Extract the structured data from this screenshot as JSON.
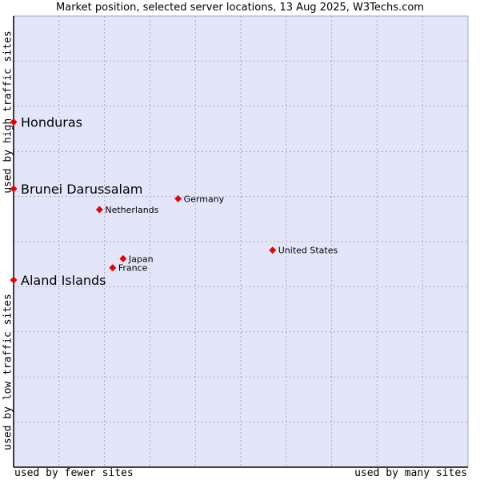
{
  "chart_data": {
    "type": "scatter",
    "title": "Market position, selected server locations, 13 Aug 2025, W3Techs.com",
    "xlabel_low": "used by fewer sites",
    "xlabel_high": "used by many sites",
    "ylabel_low": "used by low traffic sites",
    "ylabel_high": "used by high traffic sites",
    "xlim": [
      0,
      100
    ],
    "ylim": [
      0,
      100
    ],
    "grid": true,
    "points": [
      {
        "name": "Honduras",
        "x": 0,
        "y": 76.5,
        "highlight": true
      },
      {
        "name": "Brunei Darussalam",
        "x": 0,
        "y": 61.7,
        "highlight": true
      },
      {
        "name": "Aland Islands",
        "x": 0,
        "y": 41.5,
        "highlight": true
      },
      {
        "name": "Germany",
        "x": 36.2,
        "y": 59.5,
        "highlight": false
      },
      {
        "name": "Netherlands",
        "x": 18.9,
        "y": 57.1,
        "highlight": false
      },
      {
        "name": "United States",
        "x": 57.0,
        "y": 48.1,
        "highlight": false
      },
      {
        "name": "Japan",
        "x": 24.1,
        "y": 46.2,
        "highlight": false
      },
      {
        "name": "France",
        "x": 21.8,
        "y": 44.2,
        "highlight": false
      }
    ]
  },
  "colors": {
    "plot_background": "#e3e5f8",
    "grid": "#a7a9c4",
    "marker": "#ee0000",
    "axis": "#000000"
  }
}
